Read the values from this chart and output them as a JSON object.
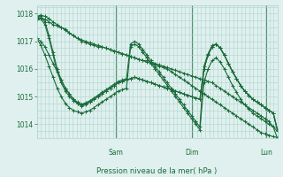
{
  "title": "",
  "xlabel": "Pression niveau de la mer( hPa )",
  "ylabel": "",
  "bg_color": "#dff0ee",
  "grid_color": "#b0d4cc",
  "line_color": "#1a6b3a",
  "marker_color": "#1a6b3a",
  "ylim": [
    1013.5,
    1018.3
  ],
  "yticks": [
    1014,
    1015,
    1016,
    1017,
    1018
  ],
  "x_day_labels": [
    [
      "Sam",
      0.33
    ],
    [
      "Dim",
      0.645
    ],
    [
      "Lun",
      0.955
    ]
  ],
  "series": [
    [
      1017.8,
      1017.85,
      1017.8,
      1017.7,
      1017.6,
      1017.55,
      1017.5,
      1017.45,
      1017.3,
      1017.2,
      1017.1,
      1017.0,
      1016.95,
      1016.9,
      1016.85,
      1016.8,
      1016.8,
      1016.75,
      1016.7,
      1016.65,
      1016.6,
      1016.55,
      1016.5,
      1016.45,
      1016.4,
      1016.35,
      1016.3,
      1016.3,
      1016.25,
      1016.2,
      1016.15,
      1016.1,
      1016.05,
      1016.0,
      1015.95,
      1015.9,
      1015.85,
      1015.8,
      1015.75,
      1015.7,
      1015.65,
      1015.6,
      1015.55,
      1015.5,
      1015.4,
      1015.3,
      1015.2,
      1015.1,
      1015.0,
      1014.9,
      1014.8,
      1014.7,
      1014.6,
      1014.5,
      1014.4,
      1014.3,
      1014.2,
      1014.1,
      1013.9,
      1013.75
    ],
    [
      1017.9,
      1017.95,
      1017.9,
      1017.82,
      1017.7,
      1017.6,
      1017.5,
      1017.4,
      1017.3,
      1017.2,
      1017.1,
      1017.05,
      1017.0,
      1016.95,
      1016.9,
      1016.85,
      1016.8,
      1016.75,
      1016.7,
      1016.65,
      1016.6,
      1016.55,
      1016.5,
      1016.45,
      1016.4,
      1016.35,
      1016.3,
      1016.25,
      1016.2,
      1016.15,
      1016.1,
      1016.05,
      1016.0,
      1015.9,
      1015.8,
      1015.7,
      1015.6,
      1015.5,
      1015.4,
      1015.3,
      1015.2,
      1015.1,
      1015.0,
      1014.9,
      1014.8,
      1014.7,
      1014.6,
      1014.5,
      1014.4,
      1014.3,
      1014.2,
      1014.1,
      1014.0,
      1013.9,
      1013.8,
      1013.7,
      1013.65,
      1013.6,
      1013.55,
      1013.52
    ],
    [
      1017.8,
      1017.82,
      1017.6,
      1017.1,
      1016.5,
      1015.9,
      1015.5,
      1015.2,
      1015.0,
      1014.85,
      1014.75,
      1014.7,
      1014.75,
      1014.8,
      1014.9,
      1015.0,
      1015.1,
      1015.2,
      1015.3,
      1015.4,
      1015.5,
      1015.55,
      1015.6,
      1015.65,
      1015.7,
      1015.65,
      1015.6,
      1015.55,
      1015.5,
      1015.45,
      1015.4,
      1015.35,
      1015.3,
      1015.25,
      1015.2,
      1015.15,
      1015.1,
      1015.05,
      1015.0,
      1014.95,
      1014.9,
      1016.0,
      1016.5,
      1016.8,
      1016.9,
      1016.75,
      1016.5,
      1016.2,
      1015.9,
      1015.65,
      1015.4,
      1015.2,
      1015.05,
      1014.9,
      1014.8,
      1014.7,
      1014.6,
      1014.5,
      1014.4,
      1013.8
    ],
    [
      1017.1,
      1017.0,
      1016.8,
      1016.5,
      1016.2,
      1015.9,
      1015.6,
      1015.3,
      1015.1,
      1014.9,
      1014.75,
      1014.65,
      1014.7,
      1014.8,
      1014.9,
      1015.0,
      1015.1,
      1015.2,
      1015.3,
      1015.4,
      1015.5,
      1015.55,
      1015.6,
      1015.65,
      1015.7,
      1015.65,
      1015.6,
      1015.55,
      1015.5,
      1015.45,
      1015.4,
      1015.35,
      1015.3,
      1015.25,
      1015.2,
      1015.15,
      1015.1,
      1015.05,
      1015.0,
      1014.95,
      1014.9,
      1016.0,
      1016.5,
      1016.8,
      1016.9,
      1016.75,
      1016.5,
      1016.2,
      1015.9,
      1015.65,
      1015.4,
      1015.2,
      1015.05,
      1014.9,
      1014.8,
      1014.7,
      1014.6,
      1014.5,
      1014.4,
      1013.8
    ],
    [
      1017.85,
      1017.9,
      1017.7,
      1017.2,
      1016.6,
      1016.0,
      1015.6,
      1015.3,
      1015.1,
      1014.9,
      1014.8,
      1014.72,
      1014.78,
      1014.85,
      1014.95,
      1015.05,
      1015.15,
      1015.25,
      1015.35,
      1015.45,
      1015.55,
      1015.6,
      1015.65,
      1016.9,
      1017.0,
      1016.9,
      1016.7,
      1016.5,
      1016.3,
      1016.1,
      1015.9,
      1015.7,
      1015.5,
      1015.3,
      1015.1,
      1014.9,
      1014.7,
      1014.5,
      1014.3,
      1014.1,
      1013.9,
      1016.1,
      1016.55,
      1016.85,
      1016.9,
      1016.75,
      1016.5,
      1016.2,
      1015.9,
      1015.65,
      1015.4,
      1015.2,
      1015.05,
      1014.9,
      1014.8,
      1014.7,
      1014.6,
      1014.5,
      1014.4,
      1013.8
    ],
    [
      1017.1,
      1016.85,
      1016.5,
      1016.1,
      1015.7,
      1015.3,
      1015.0,
      1014.75,
      1014.6,
      1014.5,
      1014.45,
      1014.4,
      1014.45,
      1014.5,
      1014.6,
      1014.7,
      1014.8,
      1014.9,
      1015.0,
      1015.1,
      1015.2,
      1015.25,
      1015.3,
      1016.8,
      1016.9,
      1016.8,
      1016.6,
      1016.4,
      1016.2,
      1016.0,
      1015.8,
      1015.6,
      1015.4,
      1015.2,
      1015.0,
      1014.8,
      1014.6,
      1014.4,
      1014.2,
      1014.0,
      1013.8,
      1015.5,
      1016.0,
      1016.3,
      1016.4,
      1016.25,
      1016.0,
      1015.7,
      1015.4,
      1015.15,
      1014.9,
      1014.7,
      1014.55,
      1014.4,
      1014.3,
      1014.2,
      1014.1,
      1014.0,
      1013.9,
      1013.5
    ]
  ],
  "n_points": 60,
  "vline_positions": [
    0.33,
    0.645,
    0.955
  ],
  "marker": "+"
}
